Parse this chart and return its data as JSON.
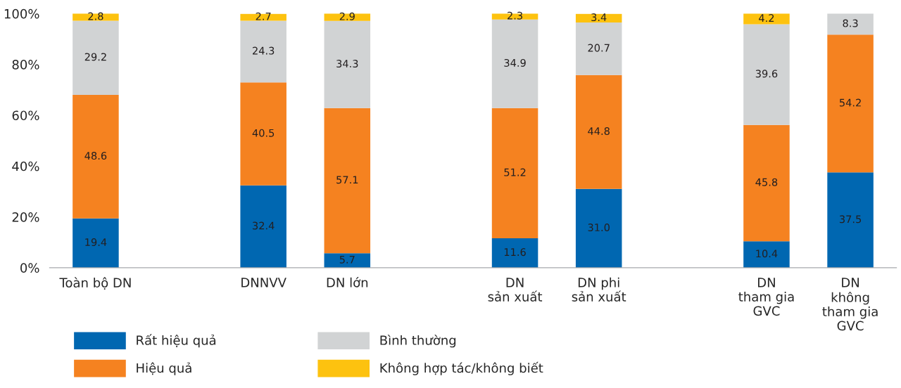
{
  "chart_data": {
    "type": "bar",
    "stacked": true,
    "data_labels": true,
    "legend": "bottom",
    "grid": false,
    "categories": [
      "Toàn bộ DN",
      null,
      "DNNVV",
      "DN lớn",
      null,
      "DN\nsản xuất",
      "DN phi\nsản xuất",
      null,
      "DN\ntham gia\nGVC",
      "DN\nkhông\ntham gia\nGVC"
    ],
    "series": [
      {
        "name": "Rất hiệu quả",
        "color": "#0067b1",
        "values": [
          19.4,
          null,
          32.4,
          5.7,
          null,
          11.6,
          31.0,
          null,
          10.4,
          37.5
        ],
        "value_labels": [
          "19.4",
          null,
          "32.4",
          "5.7",
          null,
          "11.6",
          "31.0",
          null,
          "10.4",
          "37.5"
        ]
      },
      {
        "name": "Hiệu quả",
        "color": "#f58220",
        "values": [
          48.6,
          null,
          40.5,
          57.1,
          null,
          51.2,
          44.8,
          null,
          45.8,
          54.2
        ]
      },
      {
        "name": "Bình thường",
        "color": "#d1d3d4",
        "values": [
          29.2,
          null,
          24.3,
          34.3,
          null,
          34.9,
          20.7,
          null,
          39.6,
          8.3
        ]
      },
      {
        "name": "Không hợp tác/không biết",
        "color": "#fdc20f",
        "values": [
          2.8,
          null,
          2.7,
          2.9,
          null,
          2.3,
          3.4,
          null,
          4.2,
          null
        ]
      }
    ],
    "ylim": [
      0,
      100
    ],
    "yticks": [
      {
        "value": 0,
        "label": "0%"
      },
      {
        "value": 20,
        "label": "20%"
      },
      {
        "value": 40,
        "label": "40%"
      },
      {
        "value": 60,
        "label": "60%"
      },
      {
        "value": 80,
        "label": "80%"
      },
      {
        "value": 100,
        "label": "100%"
      }
    ]
  }
}
